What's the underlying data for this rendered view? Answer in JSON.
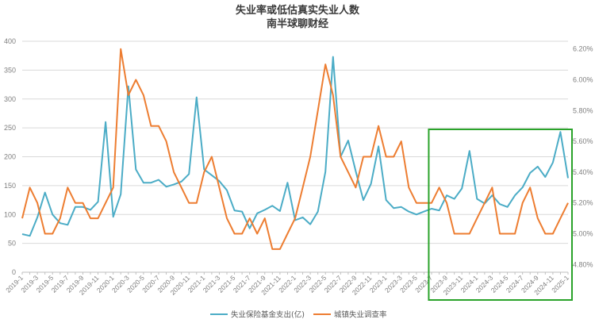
{
  "chart_data": {
    "type": "line",
    "title": "失业率或低估真实失业人数",
    "subtitle": "南半球聊财经",
    "colors": {
      "series1": "#4bacc6",
      "series2": "#ed7d31",
      "highlight": "#2aa32a",
      "grid": "#d9d9d9"
    },
    "x_tick_labels": [
      "2019-1",
      "2019-3",
      "2019-5",
      "2019-7",
      "2019-9",
      "2019-11",
      "2020-1",
      "2020-3",
      "2020-5",
      "2020-7",
      "2020-9",
      "2020-11",
      "2021-1",
      "2021-3",
      "2021-5",
      "2021-7",
      "2021-9",
      "2021-11",
      "2022-1",
      "2022-3",
      "2022-5",
      "2022-7",
      "2022-9",
      "2022-11",
      "2023-1",
      "2023-3",
      "2023-5",
      "2023-7",
      "2023-9",
      "2023-11",
      "2024-1",
      "2024-3",
      "2024-5",
      "2024-7",
      "2024-9",
      "2024-11",
      "2025-1"
    ],
    "y_left": {
      "ticks": [
        "0",
        "50",
        "100",
        "150",
        "200",
        "250",
        "300",
        "350",
        "400"
      ],
      "range": [
        0,
        400
      ]
    },
    "y_right": {
      "ticks": [
        "4.80%",
        "5.00%",
        "5.20%",
        "5.40%",
        "5.60%",
        "5.80%",
        "6.00%",
        "6.20%"
      ],
      "range": [
        4.75,
        6.25
      ]
    },
    "grid": true,
    "legend_position": "bottom",
    "highlight_box": {
      "x_from": "2023-6",
      "x_to": "2025-1"
    },
    "series": [
      {
        "name": "失业保险基金支出(亿)",
        "axis": "left",
        "values": [
          66,
          63,
          95,
          138,
          100,
          85,
          82,
          113,
          113,
          108,
          122,
          260,
          96,
          135,
          322,
          178,
          155,
          155,
          160,
          148,
          152,
          157,
          170,
          303,
          178,
          168,
          158,
          142,
          107,
          105,
          76,
          102,
          108,
          115,
          106,
          155,
          90,
          95,
          83,
          105,
          174,
          373,
          200,
          228,
          175,
          125,
          153,
          218,
          125,
          111,
          113,
          105,
          100,
          105,
          110,
          107,
          133,
          127,
          145,
          210,
          127,
          119,
          133,
          118,
          113,
          133,
          147,
          172,
          183,
          165,
          190,
          243,
          163
        ]
      },
      {
        "name": "城镇失业调查率",
        "axis": "right",
        "values": [
          5.1,
          5.3,
          5.2,
          5.0,
          5.0,
          5.1,
          5.3,
          5.2,
          5.2,
          5.1,
          5.1,
          5.2,
          5.3,
          6.2,
          5.9,
          6.0,
          5.9,
          5.7,
          5.7,
          5.6,
          5.4,
          5.3,
          5.2,
          5.2,
          5.4,
          5.5,
          5.3,
          5.1,
          5.0,
          5.0,
          5.1,
          5.0,
          5.1,
          4.9,
          4.9,
          5.0,
          5.1,
          5.3,
          5.5,
          5.8,
          6.1,
          5.9,
          5.5,
          5.4,
          5.3,
          5.5,
          5.5,
          5.7,
          5.5,
          5.5,
          5.6,
          5.3,
          5.2,
          5.2,
          5.2,
          5.3,
          5.2,
          5.0,
          5.0,
          5.0,
          5.1,
          5.2,
          5.3,
          5.0,
          5.0,
          5.0,
          5.2,
          5.3,
          5.1,
          5.0,
          5.0,
          5.1,
          5.2
        ]
      }
    ]
  }
}
